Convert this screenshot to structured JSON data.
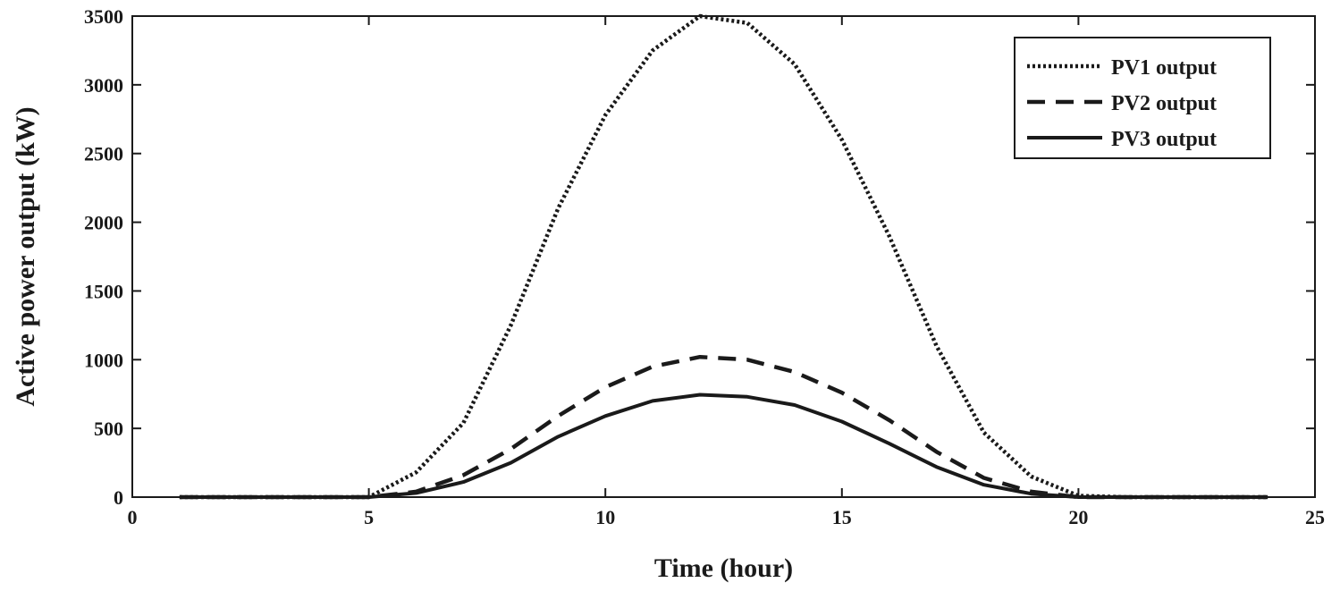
{
  "chart_data": {
    "type": "line",
    "title": "",
    "xlabel": "Time (hour)",
    "ylabel": "Active power output (kW)",
    "xlim": [
      0,
      25
    ],
    "ylim": [
      0,
      3500
    ],
    "xticks": [
      0,
      5,
      10,
      15,
      20,
      25
    ],
    "yticks": [
      0,
      500,
      1000,
      1500,
      2000,
      2500,
      3000,
      3500
    ],
    "grid": false,
    "legend_position": "top-right",
    "x": [
      1,
      2,
      3,
      4,
      5,
      6,
      7,
      8,
      9,
      10,
      11,
      12,
      13,
      14,
      15,
      16,
      17,
      18,
      19,
      20,
      21,
      22,
      23,
      24
    ],
    "series": [
      {
        "name": "PV1 output",
        "style": "dotted",
        "color": "#1a1a1a",
        "values": [
          0,
          0,
          0,
          0,
          0,
          180,
          540,
          1250,
          2100,
          2780,
          3250,
          3500,
          3450,
          3150,
          2600,
          1900,
          1100,
          470,
          150,
          10,
          0,
          0,
          0,
          0
        ]
      },
      {
        "name": "PV2 output",
        "style": "dashed",
        "color": "#1a1a1a",
        "values": [
          0,
          0,
          0,
          0,
          0,
          40,
          160,
          350,
          590,
          800,
          950,
          1020,
          1000,
          910,
          760,
          560,
          330,
          140,
          40,
          0,
          0,
          0,
          0,
          0
        ]
      },
      {
        "name": "PV3 output",
        "style": "solid",
        "color": "#1a1a1a",
        "values": [
          0,
          0,
          0,
          0,
          0,
          30,
          110,
          250,
          440,
          590,
          700,
          745,
          730,
          670,
          550,
          390,
          220,
          90,
          25,
          0,
          0,
          0,
          0,
          0
        ]
      }
    ]
  }
}
